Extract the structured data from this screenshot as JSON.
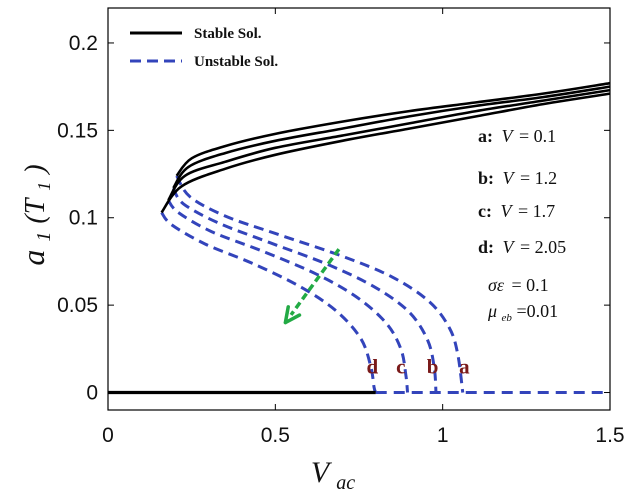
{
  "chart_data": {
    "type": "line",
    "xlabel": "V",
    "xlabel_sub": "ac",
    "ylabel": "a",
    "ylabel_sub": "1",
    "ylabel_arg": "(T",
    "ylabel_arg_sub": "1",
    "ylabel_arg_close": ")",
    "xlim": [
      0,
      1.5
    ],
    "ylim": [
      -0.01,
      0.22
    ],
    "x_ticks": [
      0,
      0.5,
      1,
      1.5
    ],
    "x_tick_labels": [
      "0",
      "0.5",
      "1",
      "1.5"
    ],
    "y_ticks": [
      0,
      0.05,
      0.1,
      0.15,
      0.2
    ],
    "y_tick_labels": [
      "0",
      "0.05",
      "0.1",
      "0.15",
      "0.2"
    ],
    "grid": false,
    "legend_position": "top-left",
    "legend": [
      {
        "label": "Stable Sol.",
        "style": "solid",
        "color": "#000000"
      },
      {
        "label": "Unstable Sol.",
        "style": "dashed",
        "color": "#3344bb"
      }
    ],
    "colors": {
      "stable": "#000000",
      "unstable": "#3344bb",
      "arrow": "#22aa44",
      "curve_label": "#7a1a1a"
    },
    "series": [
      {
        "id": "a",
        "stable": [
          [
            0.205,
            0.124
          ],
          [
            0.25,
            0.134
          ],
          [
            0.35,
            0.141
          ],
          [
            0.5,
            0.148
          ],
          [
            0.7,
            0.155
          ],
          [
            0.9,
            0.161
          ],
          [
            1.1,
            0.166
          ],
          [
            1.3,
            0.171
          ],
          [
            1.5,
            0.177
          ]
        ],
        "unstable": [
          [
            0.205,
            0.124
          ],
          [
            0.245,
            0.112
          ],
          [
            0.35,
            0.101
          ],
          [
            0.5,
            0.091
          ],
          [
            0.7,
            0.078
          ],
          [
            0.85,
            0.066
          ],
          [
            0.96,
            0.052
          ],
          [
            1.02,
            0.037
          ],
          [
            1.045,
            0.022
          ],
          [
            1.06,
            0.0
          ]
        ],
        "zero_stable_end": 1.06
      },
      {
        "id": "b",
        "stable": [
          [
            0.195,
            0.117
          ],
          [
            0.24,
            0.129
          ],
          [
            0.35,
            0.137
          ],
          [
            0.5,
            0.144
          ],
          [
            0.7,
            0.151
          ],
          [
            0.9,
            0.158
          ],
          [
            1.1,
            0.164
          ],
          [
            1.3,
            0.169
          ],
          [
            1.5,
            0.175
          ]
        ],
        "unstable": [
          [
            0.195,
            0.117
          ],
          [
            0.225,
            0.108
          ],
          [
            0.33,
            0.097
          ],
          [
            0.48,
            0.086
          ],
          [
            0.66,
            0.073
          ],
          [
            0.8,
            0.06
          ],
          [
            0.9,
            0.046
          ],
          [
            0.955,
            0.03
          ],
          [
            0.975,
            0.014
          ],
          [
            0.98,
            0.0
          ]
        ],
        "zero_stable_end": 0.98
      },
      {
        "id": "c",
        "stable": [
          [
            0.18,
            0.11
          ],
          [
            0.23,
            0.124
          ],
          [
            0.35,
            0.132
          ],
          [
            0.5,
            0.14
          ],
          [
            0.7,
            0.147
          ],
          [
            0.9,
            0.154
          ],
          [
            1.1,
            0.161
          ],
          [
            1.3,
            0.167
          ],
          [
            1.5,
            0.173
          ]
        ],
        "unstable": [
          [
            0.18,
            0.11
          ],
          [
            0.21,
            0.103
          ],
          [
            0.31,
            0.092
          ],
          [
            0.46,
            0.081
          ],
          [
            0.62,
            0.068
          ],
          [
            0.74,
            0.055
          ],
          [
            0.83,
            0.04
          ],
          [
            0.875,
            0.025
          ],
          [
            0.89,
            0.01
          ],
          [
            0.895,
            0.0
          ]
        ],
        "zero_stable_end": 0.895
      },
      {
        "id": "d",
        "stable": [
          [
            0.16,
            0.103
          ],
          [
            0.22,
            0.118
          ],
          [
            0.35,
            0.128
          ],
          [
            0.5,
            0.136
          ],
          [
            0.7,
            0.144
          ],
          [
            0.9,
            0.151
          ],
          [
            1.1,
            0.158
          ],
          [
            1.3,
            0.165
          ],
          [
            1.5,
            0.171
          ]
        ],
        "unstable": [
          [
            0.16,
            0.103
          ],
          [
            0.19,
            0.096
          ],
          [
            0.29,
            0.085
          ],
          [
            0.43,
            0.074
          ],
          [
            0.57,
            0.061
          ],
          [
            0.68,
            0.047
          ],
          [
            0.755,
            0.031
          ],
          [
            0.785,
            0.015
          ],
          [
            0.795,
            0.003
          ],
          [
            0.8,
            0.0
          ]
        ],
        "zero_stable_end": 0.8
      }
    ],
    "zero_line": {
      "stable_range": [
        0,
        0.8
      ],
      "unstable_range": [
        0.8,
        1.5
      ],
      "y": 0
    },
    "curve_labels": [
      {
        "text": "d",
        "x": 0.79,
        "y": 0.011
      },
      {
        "text": "c",
        "x": 0.875,
        "y": 0.011
      },
      {
        "text": "b",
        "x": 0.97,
        "y": 0.011
      },
      {
        "text": "a",
        "x": 1.065,
        "y": 0.011
      }
    ],
    "arrow": {
      "from": [
        0.69,
        0.082
      ],
      "to": [
        0.53,
        0.04
      ]
    },
    "annotations": [
      {
        "key": "a:",
        "var": "V",
        "value": "= 0.1"
      },
      {
        "key": "b:",
        "var": "V",
        "value": "= 1.2"
      },
      {
        "key": "c:",
        "var": "V",
        "value": "= 1.7"
      },
      {
        "key": "d:",
        "var": "V",
        "value": "= 2.05"
      }
    ],
    "constants": [
      {
        "var": "σε",
        "sub": "",
        "value": "= 0.1"
      },
      {
        "var": "μ",
        "sub": "eb",
        "value": "=0.01"
      }
    ]
  }
}
